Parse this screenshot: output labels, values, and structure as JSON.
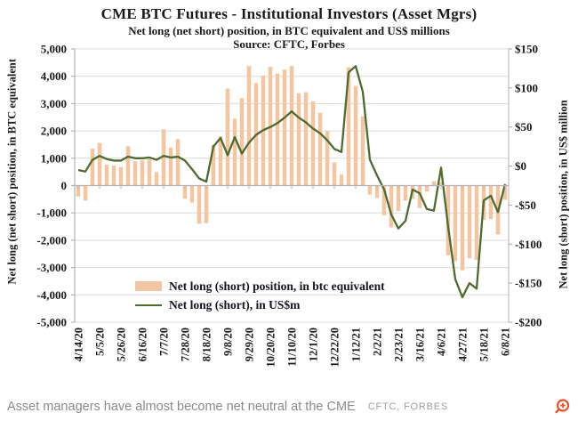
{
  "header": {
    "title": "CME BTC Futures - Institutional Investors (Asset Mgrs)",
    "subtitle": "Net long (net short) position, in BTC equivalent and US$ millions",
    "source": "Source: CFTC, Forbes"
  },
  "chart_data": {
    "type": "bar",
    "x_dates": [
      "4/14/20",
      "4/21/20",
      "4/28/20",
      "5/5/20",
      "5/12/20",
      "5/19/20",
      "5/26/20",
      "6/2/20",
      "6/9/20",
      "6/16/20",
      "6/23/20",
      "6/30/20",
      "7/7/20",
      "7/14/20",
      "7/21/20",
      "7/28/20",
      "8/4/20",
      "8/11/20",
      "8/18/20",
      "8/25/20",
      "9/1/20",
      "9/8/20",
      "9/15/20",
      "9/22/20",
      "9/29/20",
      "10/6/20",
      "10/13/20",
      "10/20/20",
      "10/27/20",
      "11/3/20",
      "11/10/20",
      "11/17/20",
      "11/24/20",
      "12/1/20",
      "12/8/20",
      "12/15/20",
      "12/22/20",
      "12/29/20",
      "1/5/21",
      "1/12/21",
      "1/19/21",
      "1/26/21",
      "2/2/21",
      "2/9/21",
      "2/16/21",
      "2/23/21",
      "3/2/21",
      "3/9/21",
      "3/16/21",
      "3/23/21",
      "3/30/21",
      "4/6/21",
      "4/13/21",
      "4/20/21",
      "4/27/21",
      "5/4/21",
      "5/11/21",
      "5/18/21",
      "5/25/21",
      "6/1/21",
      "6/8/21"
    ],
    "x_tick_labels": [
      "4/14/20",
      "5/5/20",
      "5/26/20",
      "6/16/20",
      "7/7/20",
      "7/28/20",
      "8/18/20",
      "9/8/20",
      "9/29/20",
      "10/20/20",
      "11/10/20",
      "12/1/20",
      "12/22/20",
      "1/12/21",
      "2/2/21",
      "2/23/21",
      "3/16/21",
      "4/6/21",
      "4/27/21",
      "5/18/21",
      "6/8/21"
    ],
    "series": [
      {
        "name": "Net long (short) position, in btc equivalent",
        "type": "bar",
        "axis": "left",
        "color": "#f2c6a2",
        "values": [
          -400,
          -550,
          1350,
          1560,
          760,
          730,
          680,
          1440,
          890,
          920,
          960,
          490,
          2060,
          1390,
          1700,
          -480,
          -620,
          -1400,
          -1380,
          1500,
          1800,
          3550,
          2450,
          3200,
          4380,
          3750,
          4020,
          4350,
          4100,
          4240,
          4380,
          3370,
          3420,
          3080,
          2660,
          1990,
          850,
          400,
          4330,
          3650,
          2530,
          -330,
          -450,
          -1090,
          -1530,
          -930,
          -550,
          -490,
          -820,
          -220,
          160,
          120,
          -2550,
          -2770,
          -3100,
          -2660,
          -2720,
          -1250,
          -1230,
          -1790,
          -520
        ]
      },
      {
        "name": "Net long (short), in US$m",
        "type": "line",
        "axis": "right",
        "color": "#4e6b2e",
        "values": [
          -5,
          -7,
          8,
          13,
          9,
          7,
          7,
          12,
          10,
          10,
          11,
          8,
          13,
          11,
          12,
          7,
          -4,
          -16,
          -20,
          25,
          36,
          14,
          37,
          16,
          30,
          40,
          46,
          50,
          55,
          62,
          70,
          62,
          56,
          48,
          42,
          33,
          22,
          18,
          120,
          128,
          95,
          8,
          -12,
          -30,
          -62,
          -80,
          -70,
          -30,
          -35,
          -55,
          -57,
          -2,
          -78,
          -145,
          -168,
          -150,
          -157,
          -44,
          -38,
          -59,
          -23
        ]
      }
    ],
    "left_axis": {
      "title": "Net long (net short) position, in BTC equivalent",
      "min": -5000,
      "max": 5000,
      "step": 1000,
      "tick_labels": [
        "5,000",
        "4,000",
        "3,000",
        "2,000",
        "1,000",
        "0",
        "-1,000",
        "-2,000",
        "-3,000",
        "-4,000",
        "-5,000"
      ]
    },
    "right_axis": {
      "title": "Net long (short) position, in US$ million",
      "min": -200,
      "max": 150,
      "step": 50,
      "tick_labels": [
        "$150",
        "$100",
        "$50",
        "$0",
        "-$50",
        "-$100",
        "-$150",
        "-$200"
      ]
    },
    "grid": true,
    "legend_position": "inside-bottom-left"
  },
  "footer": {
    "caption": "Asset managers have almost become net neutral at the CME",
    "credit": "CFTC, FORBES"
  },
  "icons": {
    "zoom_in": "magnifier-plus-icon"
  },
  "colors": {
    "bar": "#f2c6a2",
    "line": "#4e6b2e",
    "grid": "#dcdcdc",
    "axis": "#b3b3b3",
    "text": "#1a1a1a",
    "caption_text": "#8a8a8a",
    "credit_text": "#9e9e9e",
    "zoom_icon": "#e8512e"
  }
}
